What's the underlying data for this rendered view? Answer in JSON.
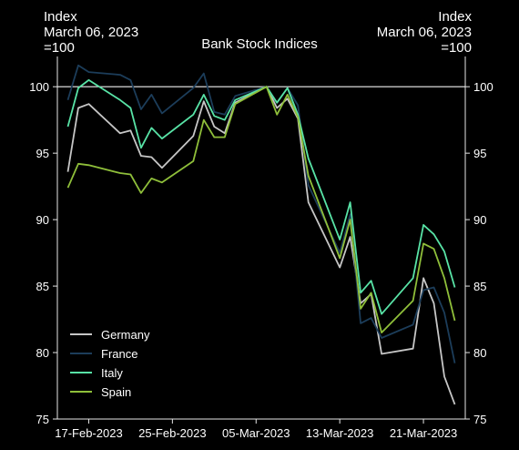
{
  "chart_data": {
    "type": "line",
    "title": "Bank Stock Indices",
    "ylabel_left": "Index\nMarch 06, 2023\n=100",
    "ylabel_right": "Index\nMarch 06, 2023\n=100",
    "xlim": [
      "2023-02-14",
      "2023-03-25"
    ],
    "ylim": [
      75,
      102
    ],
    "yticks": [
      75,
      80,
      85,
      90,
      95,
      100
    ],
    "xticks": [
      "17-Feb-2023",
      "25-Feb-2023",
      "05-Mar-2023",
      "13-Mar-2023",
      "21-Mar-2023"
    ],
    "xtick_dates": [
      "2023-02-17",
      "2023-02-25",
      "2023-03-05",
      "2023-03-13",
      "2023-03-21"
    ],
    "reference_line": 100,
    "legend_position": "lower-left",
    "series": [
      {
        "name": "Germany",
        "color": "#c6c6c6",
        "points": [
          [
            "2023-02-15",
            93.6
          ],
          [
            "2023-02-16",
            98.4
          ],
          [
            "2023-02-17",
            98.7
          ],
          [
            "2023-02-20",
            96.5
          ],
          [
            "2023-02-21",
            96.7
          ],
          [
            "2023-02-22",
            94.8
          ],
          [
            "2023-02-23",
            94.7
          ],
          [
            "2023-02-24",
            93.9
          ],
          [
            "2023-02-27",
            96.3
          ],
          [
            "2023-02-28",
            98.9
          ],
          [
            "2023-03-01",
            97.0
          ],
          [
            "2023-03-02",
            96.5
          ],
          [
            "2023-03-03",
            98.8
          ],
          [
            "2023-03-06",
            100.0
          ],
          [
            "2023-03-07",
            98.4
          ],
          [
            "2023-03-08",
            99.1
          ],
          [
            "2023-03-09",
            97.6
          ],
          [
            "2023-03-10",
            91.3
          ],
          [
            "2023-03-13",
            86.4
          ],
          [
            "2023-03-14",
            88.7
          ],
          [
            "2023-03-15",
            83.7
          ],
          [
            "2023-03-16",
            84.4
          ],
          [
            "2023-03-17",
            79.9
          ],
          [
            "2023-03-20",
            80.3
          ],
          [
            "2023-03-21",
            85.6
          ],
          [
            "2023-03-22",
            83.7
          ],
          [
            "2023-03-23",
            78.2
          ],
          [
            "2023-03-24",
            76.1
          ]
        ]
      },
      {
        "name": "France",
        "color": "#1c3d5a",
        "points": [
          [
            "2023-02-15",
            99.0
          ],
          [
            "2023-02-16",
            101.6
          ],
          [
            "2023-02-17",
            101.1
          ],
          [
            "2023-02-20",
            100.9
          ],
          [
            "2023-02-21",
            100.5
          ],
          [
            "2023-02-22",
            98.3
          ],
          [
            "2023-02-23",
            99.4
          ],
          [
            "2023-02-24",
            98.0
          ],
          [
            "2023-02-27",
            99.9
          ],
          [
            "2023-02-28",
            101.0
          ],
          [
            "2023-03-01",
            98.1
          ],
          [
            "2023-03-02",
            97.9
          ],
          [
            "2023-03-03",
            99.3
          ],
          [
            "2023-03-06",
            100.0
          ],
          [
            "2023-03-07",
            98.8
          ],
          [
            "2023-03-08",
            99.9
          ],
          [
            "2023-03-09",
            98.6
          ],
          [
            "2023-03-10",
            92.6
          ],
          [
            "2023-03-13",
            87.5
          ],
          [
            "2023-03-14",
            90.4
          ],
          [
            "2023-03-15",
            82.2
          ],
          [
            "2023-03-16",
            82.6
          ],
          [
            "2023-03-17",
            81.1
          ],
          [
            "2023-03-20",
            82.1
          ],
          [
            "2023-03-21",
            84.7
          ],
          [
            "2023-03-22",
            84.9
          ],
          [
            "2023-03-23",
            83.0
          ],
          [
            "2023-03-24",
            79.2
          ]
        ]
      },
      {
        "name": "Italy",
        "color": "#58e3a6",
        "points": [
          [
            "2023-02-15",
            97.0
          ],
          [
            "2023-02-16",
            99.9
          ],
          [
            "2023-02-17",
            100.5
          ],
          [
            "2023-02-20",
            99.0
          ],
          [
            "2023-02-21",
            98.4
          ],
          [
            "2023-02-22",
            95.4
          ],
          [
            "2023-02-23",
            96.9
          ],
          [
            "2023-02-24",
            96.1
          ],
          [
            "2023-02-27",
            97.9
          ],
          [
            "2023-02-28",
            99.4
          ],
          [
            "2023-03-01",
            97.8
          ],
          [
            "2023-03-02",
            97.5
          ],
          [
            "2023-03-03",
            99.0
          ],
          [
            "2023-03-06",
            100.0
          ],
          [
            "2023-03-07",
            98.8
          ],
          [
            "2023-03-08",
            99.9
          ],
          [
            "2023-03-09",
            97.9
          ],
          [
            "2023-03-10",
            94.6
          ],
          [
            "2023-03-13",
            88.5
          ],
          [
            "2023-03-14",
            91.3
          ],
          [
            "2023-03-15",
            84.5
          ],
          [
            "2023-03-16",
            85.4
          ],
          [
            "2023-03-17",
            82.9
          ],
          [
            "2023-03-20",
            85.6
          ],
          [
            "2023-03-21",
            89.6
          ],
          [
            "2023-03-22",
            88.9
          ],
          [
            "2023-03-23",
            87.6
          ],
          [
            "2023-03-24",
            84.9
          ]
        ]
      },
      {
        "name": "Spain",
        "color": "#8fbf3a",
        "points": [
          [
            "2023-02-15",
            92.4
          ],
          [
            "2023-02-16",
            94.2
          ],
          [
            "2023-02-17",
            94.1
          ],
          [
            "2023-02-20",
            93.5
          ],
          [
            "2023-02-21",
            93.4
          ],
          [
            "2023-02-22",
            92.0
          ],
          [
            "2023-02-23",
            93.1
          ],
          [
            "2023-02-24",
            92.8
          ],
          [
            "2023-02-27",
            94.4
          ],
          [
            "2023-02-28",
            97.5
          ],
          [
            "2023-03-01",
            96.2
          ],
          [
            "2023-03-02",
            96.2
          ],
          [
            "2023-03-03",
            98.7
          ],
          [
            "2023-03-06",
            100.0
          ],
          [
            "2023-03-07",
            97.9
          ],
          [
            "2023-03-08",
            99.4
          ],
          [
            "2023-03-09",
            97.7
          ],
          [
            "2023-03-10",
            93.3
          ],
          [
            "2023-03-13",
            87.1
          ],
          [
            "2023-03-14",
            90.0
          ],
          [
            "2023-03-15",
            83.3
          ],
          [
            "2023-03-16",
            84.5
          ],
          [
            "2023-03-17",
            81.5
          ],
          [
            "2023-03-20",
            83.9
          ],
          [
            "2023-03-21",
            88.2
          ],
          [
            "2023-03-22",
            87.8
          ],
          [
            "2023-03-23",
            85.6
          ],
          [
            "2023-03-24",
            82.4
          ]
        ]
      }
    ]
  }
}
